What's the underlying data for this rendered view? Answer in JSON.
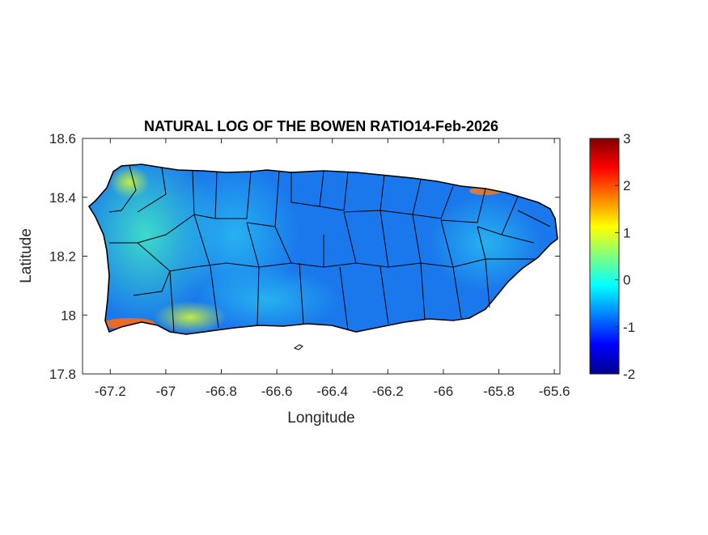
{
  "chart_data": {
    "type": "heatmap",
    "title": "NATURAL LOG OF THE BOWEN RATIO14-Feb-2026",
    "xlabel": "Longitude",
    "ylabel": "Latitude",
    "xlim": [
      -67.3,
      -65.58
    ],
    "ylim": [
      17.8,
      18.6
    ],
    "xticks": [
      "-67.2",
      "-67",
      "-66.8",
      "-66.6",
      "-66.4",
      "-66.2",
      "-66",
      "-65.8",
      "-65.6"
    ],
    "xtick_values": [
      -67.2,
      -67,
      -66.8,
      -66.6,
      -66.4,
      -66.2,
      -66,
      -65.8,
      -65.6
    ],
    "yticks": [
      "17.8",
      "18",
      "18.2",
      "18.4",
      "18.6"
    ],
    "ytick_values": [
      17.8,
      18,
      18.2,
      18.4,
      18.6
    ],
    "colorbar": {
      "colormap": "jet",
      "range": [
        -2,
        3
      ],
      "ticks": [
        "3",
        "2",
        "1",
        "0",
        "-1",
        "-2"
      ],
      "tick_values": [
        3,
        2,
        1,
        0,
        -1,
        -2
      ]
    },
    "region": "Puerto Rico municipalities",
    "typical_value": -0.5,
    "grid": false
  }
}
